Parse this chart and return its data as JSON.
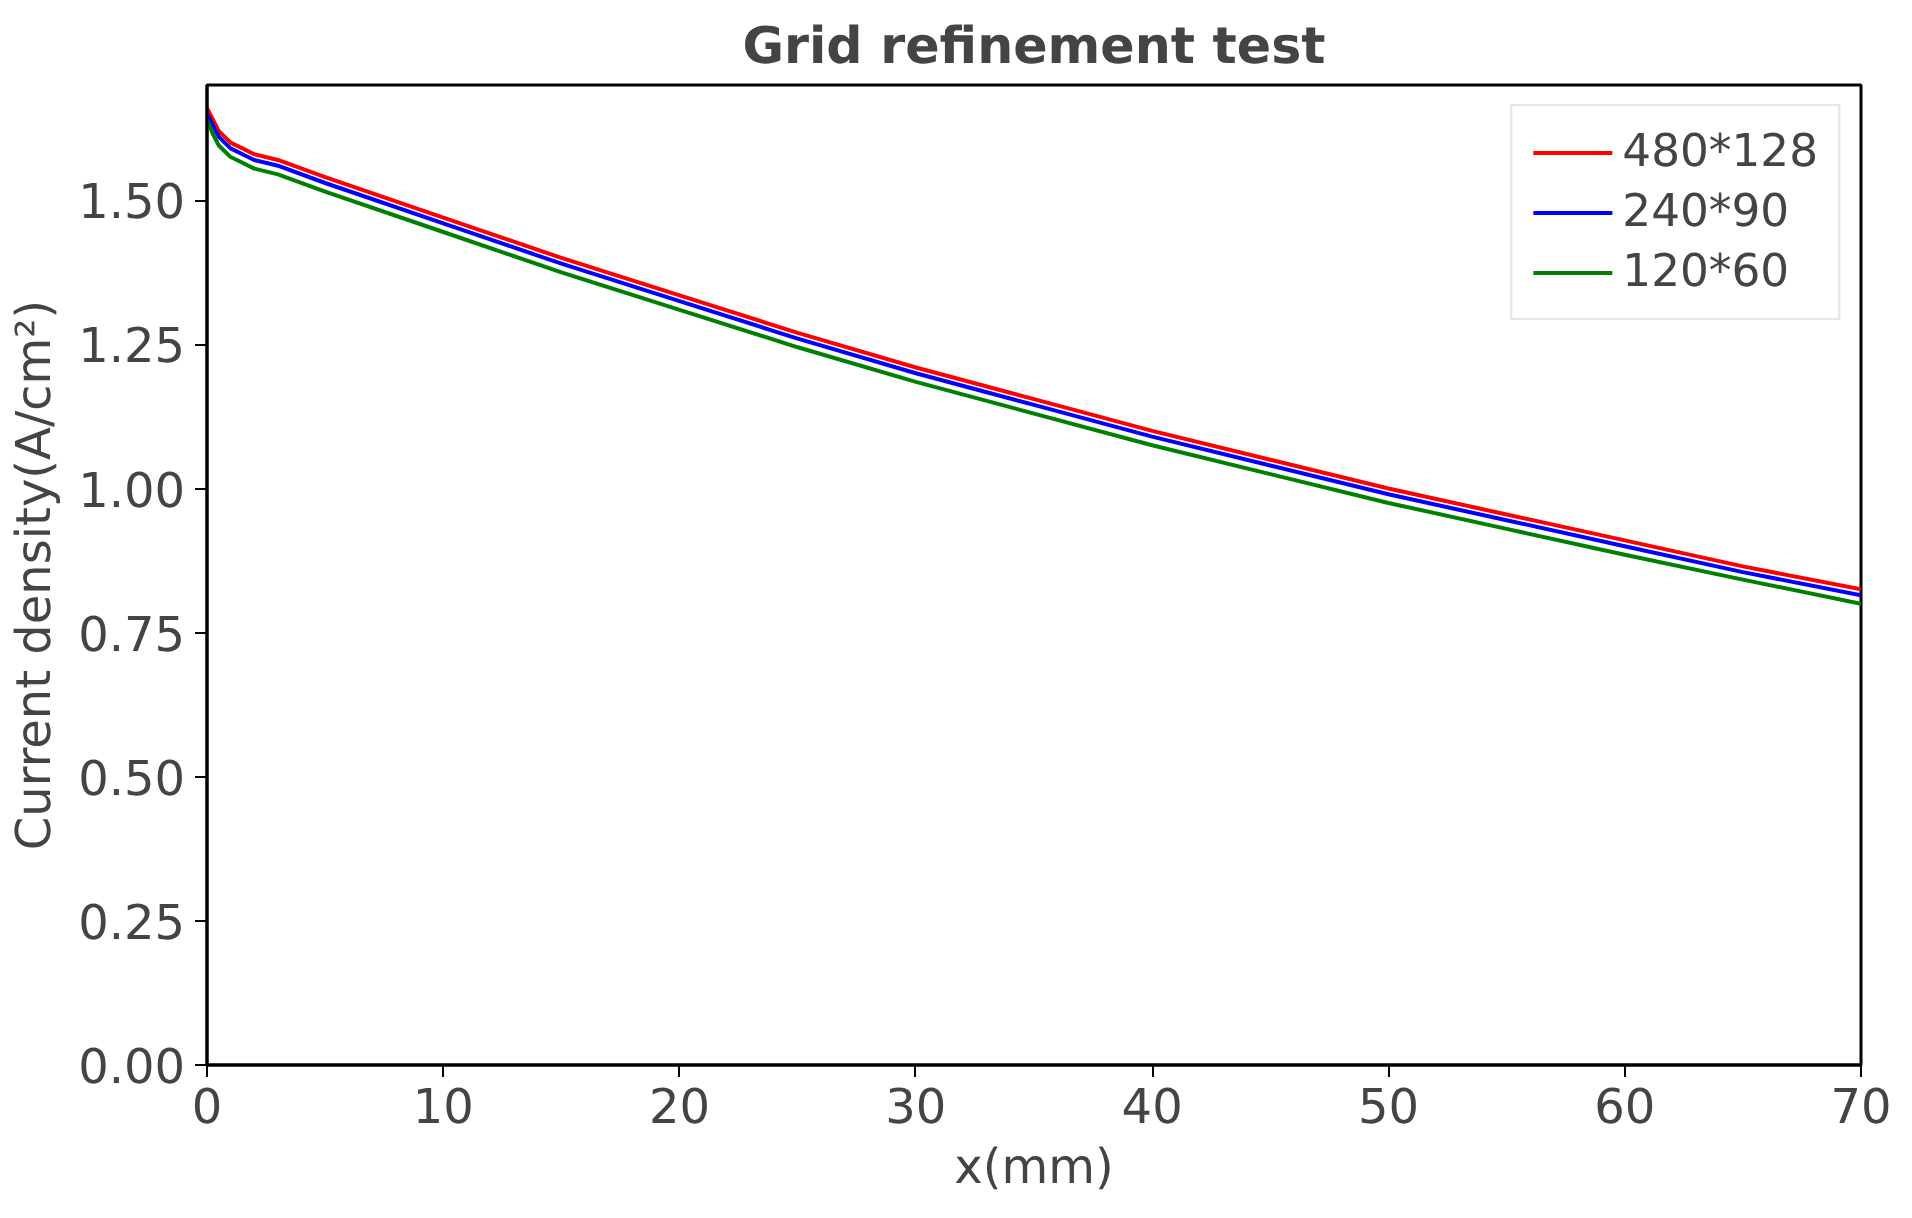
{
  "chart_data": {
    "type": "line",
    "title": "Grid refinement test",
    "xlabel": "x(mm)",
    "ylabel": "Current density(A/cm²)",
    "x": [
      0,
      0.25,
      0.5,
      1,
      1.5,
      2,
      3,
      5,
      10,
      15,
      20,
      25,
      30,
      35,
      40,
      45,
      50,
      55,
      60,
      65,
      70
    ],
    "series": [
      {
        "name": "480*128",
        "color": "#ff0000",
        "values": [
          1.66,
          1.64,
          1.62,
          1.6,
          1.59,
          1.58,
          1.57,
          1.54,
          1.47,
          1.4,
          1.335,
          1.27,
          1.21,
          1.155,
          1.1,
          1.05,
          1.0,
          0.955,
          0.91,
          0.865,
          0.825
        ]
      },
      {
        "name": "240*90",
        "color": "#0000ff",
        "values": [
          1.65,
          1.63,
          1.61,
          1.59,
          1.58,
          1.57,
          1.56,
          1.53,
          1.46,
          1.39,
          1.325,
          1.26,
          1.2,
          1.145,
          1.09,
          1.04,
          0.99,
          0.945,
          0.9,
          0.855,
          0.815
        ]
      },
      {
        "name": "120*60",
        "color": "#008000",
        "values": [
          1.64,
          1.615,
          1.595,
          1.575,
          1.565,
          1.555,
          1.545,
          1.515,
          1.445,
          1.375,
          1.31,
          1.245,
          1.185,
          1.13,
          1.075,
          1.025,
          0.975,
          0.93,
          0.885,
          0.842,
          0.8
        ]
      }
    ],
    "xlim": [
      0,
      70
    ],
    "xticks": [
      0,
      10,
      20,
      30,
      40,
      50,
      60,
      70
    ],
    "ylim": [
      0,
      1.7
    ],
    "yticks": [
      {
        "value": 0,
        "label": "0.00"
      },
      {
        "value": 0.25,
        "label": "0.25"
      },
      {
        "value": 0.5,
        "label": "0.50"
      },
      {
        "value": 0.75,
        "label": "0.75"
      },
      {
        "value": 1.0,
        "label": "1.00"
      },
      {
        "value": 1.25,
        "label": "1.25"
      },
      {
        "value": 1.5,
        "label": "1.50"
      }
    ],
    "legend": "top right",
    "grid": false,
    "marker": "none",
    "line_style": "solid"
  }
}
